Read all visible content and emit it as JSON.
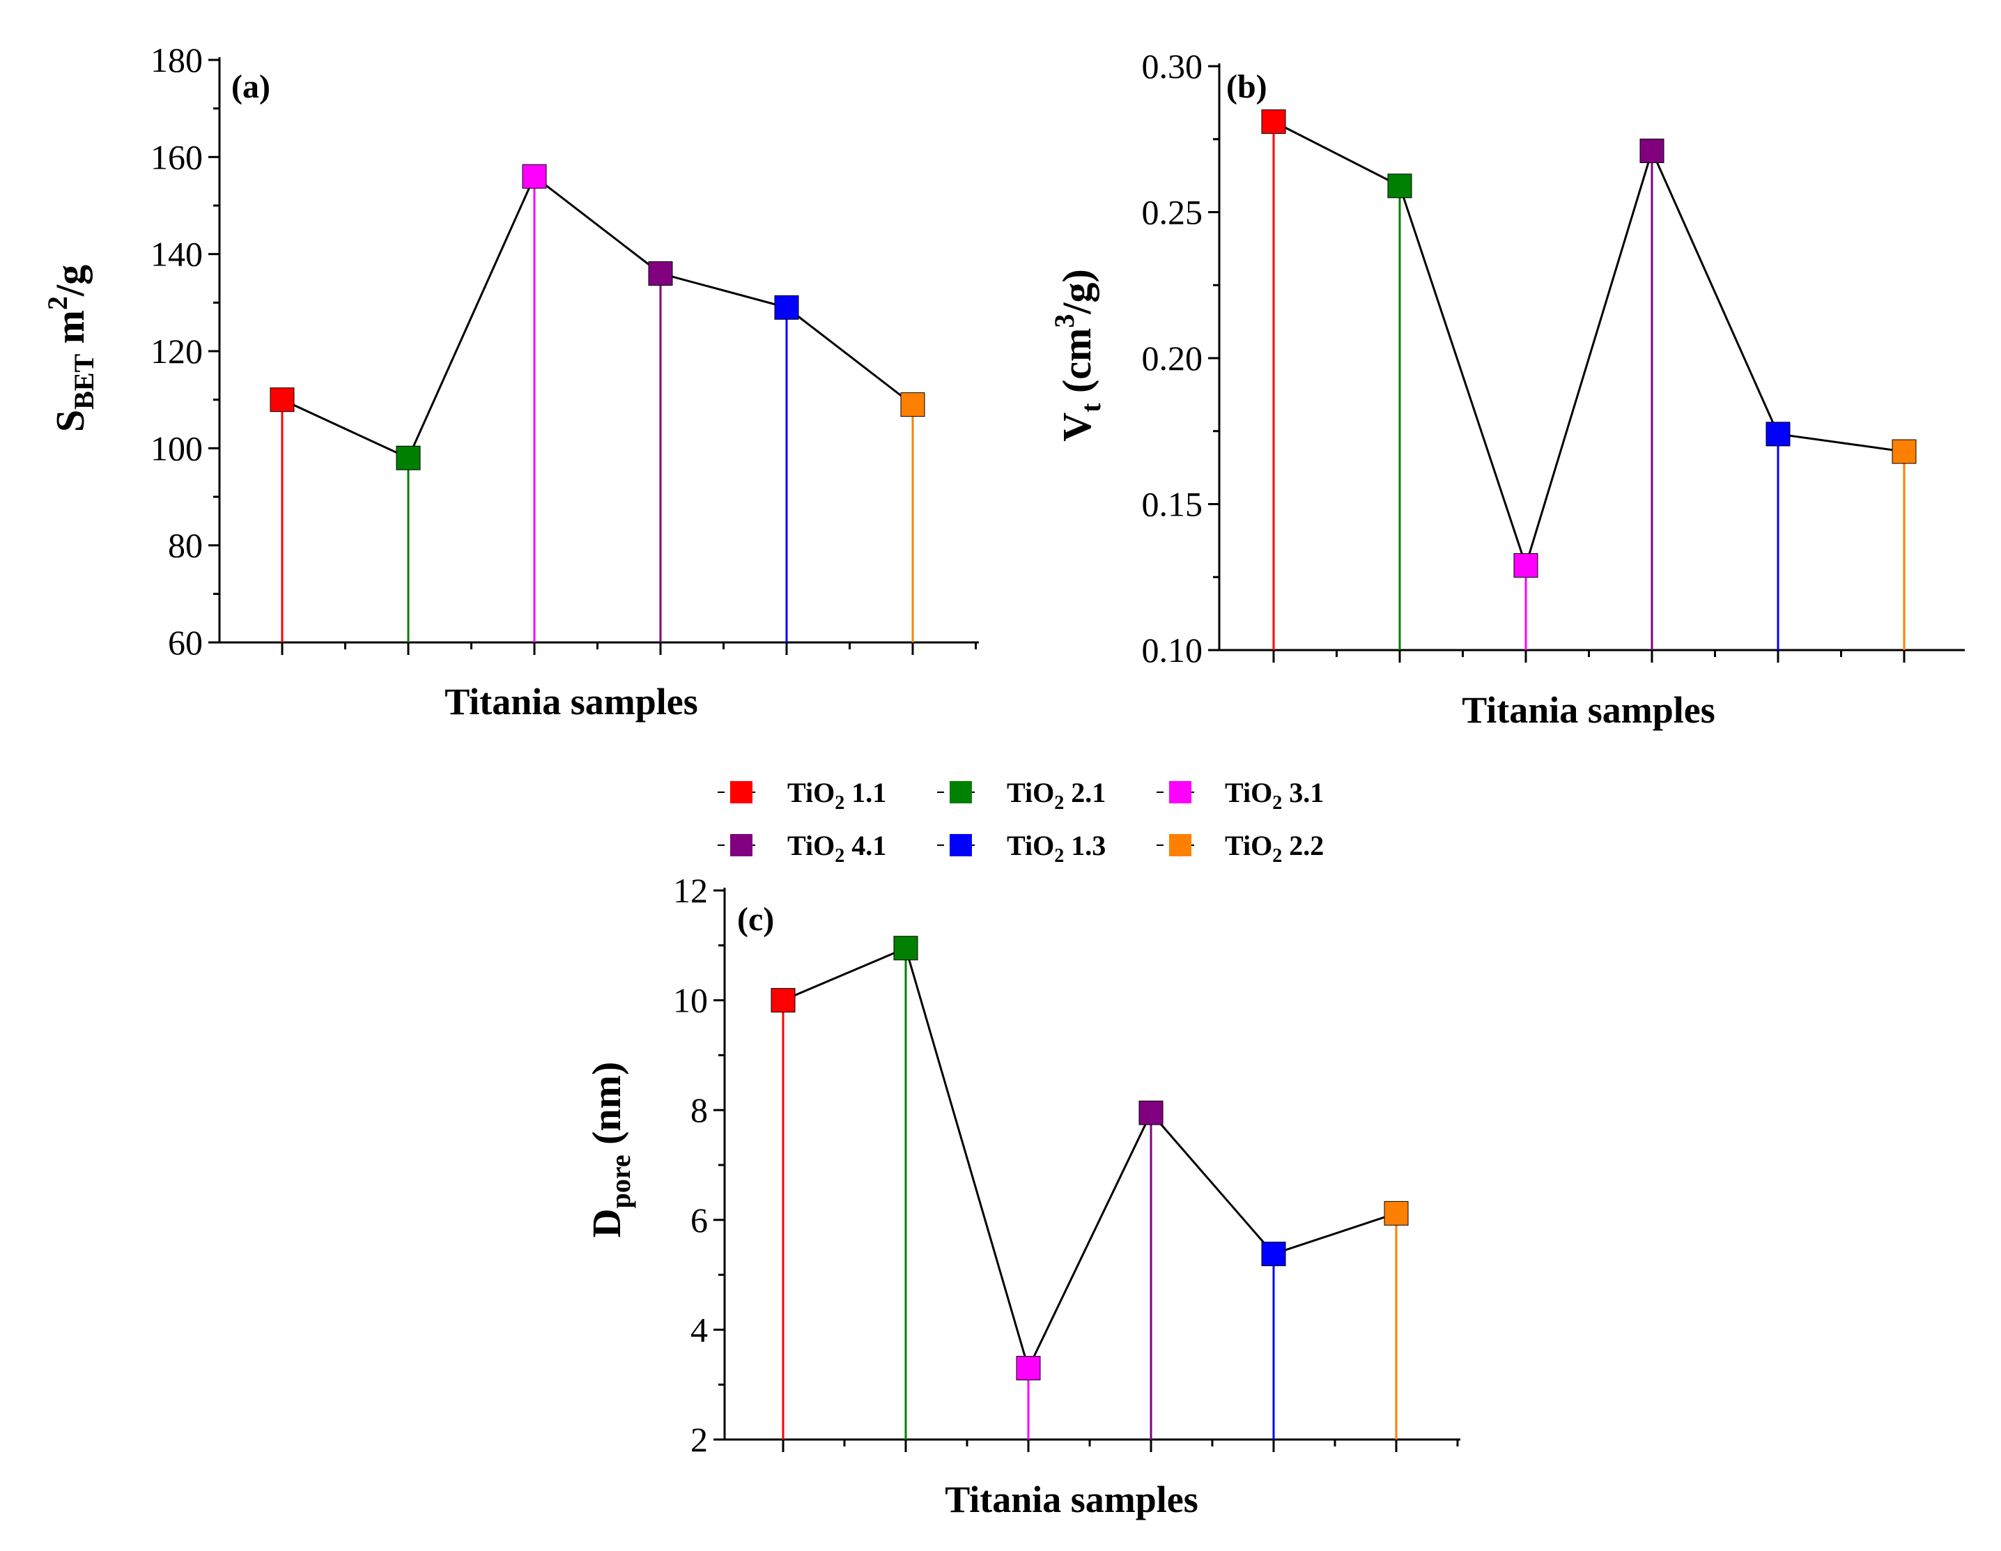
{
  "legend": {
    "items": [
      {
        "prefix": "TiO",
        "sub": "2",
        "suffix": " 1.1",
        "color": "#ff0000"
      },
      {
        "prefix": "TiO",
        "sub": "2",
        "suffix": " 2.1",
        "color": "#008000"
      },
      {
        "prefix": "TiO",
        "sub": "2",
        "suffix": " 3.1",
        "color": "#ff00ff"
      },
      {
        "prefix": "TiO",
        "sub": "2",
        "suffix": " 4.1",
        "color": "#800080"
      },
      {
        "prefix": "TiO",
        "sub": "2",
        "suffix": " 1.3",
        "color": "#0000ff"
      },
      {
        "prefix": "TiO",
        "sub": "2",
        "suffix": " 2.2",
        "color": "#ff8000"
      }
    ]
  },
  "chart_data": [
    {
      "type": "line",
      "panel_label": "(a)",
      "categories": [
        "TiO2 1.1",
        "TiO2 2.1",
        "TiO2 3.1",
        "TiO2 4.1",
        "TiO2 1.3",
        "TiO2 2.2"
      ],
      "values": [
        110,
        98,
        156,
        136,
        129,
        109
      ],
      "ylim": [
        60,
        180
      ],
      "yticks": [
        "60",
        "80",
        "100",
        "120",
        "140",
        "160",
        "180"
      ],
      "ytick_values": [
        60,
        80,
        100,
        120,
        140,
        160,
        180
      ],
      "xlabel": "Titania samples",
      "ylabel": {
        "main": "S",
        "sub": "BET",
        "after": " m",
        "sup": "2",
        "tail": "/g"
      }
    },
    {
      "type": "line",
      "panel_label": "(b)",
      "categories": [
        "TiO2 1.1",
        "TiO2 2.1",
        "TiO2 3.1",
        "TiO2 4.1",
        "TiO2 1.3",
        "TiO2 2.2"
      ],
      "values": [
        0.281,
        0.259,
        0.129,
        0.271,
        0.174,
        0.168
      ],
      "ylim": [
        0.1,
        0.3
      ],
      "yticks": [
        "0.10",
        "0.15",
        "0.20",
        "0.25",
        "0.30"
      ],
      "ytick_values": [
        0.1,
        0.15,
        0.2,
        0.25,
        0.3
      ],
      "xlabel": "Titania samples",
      "ylabel": {
        "main": "V",
        "sub": "t",
        "after": " (cm",
        "sup": "3",
        "tail": "/g)"
      }
    },
    {
      "type": "line",
      "panel_label": "(c)",
      "categories": [
        "TiO2 1.1",
        "TiO2 2.1",
        "TiO2 3.1",
        "TiO2 4.1",
        "TiO2 1.3",
        "TiO2 2.2"
      ],
      "values": [
        10.0,
        10.95,
        3.3,
        7.95,
        5.38,
        6.12
      ],
      "ylim": [
        2,
        12
      ],
      "yticks": [
        "2",
        "4",
        "6",
        "8",
        "10",
        "12"
      ],
      "ytick_values": [
        2,
        4,
        6,
        8,
        10,
        12
      ],
      "xlabel": "Titania samples",
      "ylabel": {
        "main": "D",
        "sub": "pore",
        "after": " (nm)",
        "sup": "",
        "tail": ""
      }
    }
  ]
}
